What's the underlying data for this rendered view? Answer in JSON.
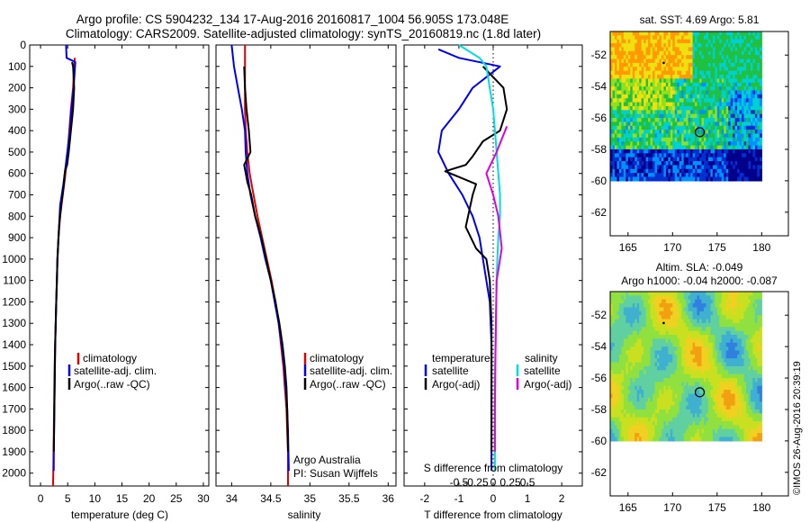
{
  "header": {
    "line1": "Argo profile: CS 5904232_134 17-Aug-2016 20160817_1004 56.905S 173.048E",
    "line2": "Climatology: CARS2009. Satellite-adjusted climatology: synTS_20160819.nc (1.8d later)"
  },
  "chart_data": [
    {
      "type": "line",
      "name": "temperature",
      "xlabel": "temperature (deg C)",
      "ylabel": "",
      "xlim": [
        -2,
        31
      ],
      "ylim": [
        2060,
        0
      ],
      "xticks": [
        0,
        5,
        10,
        15,
        20,
        25,
        30
      ],
      "yticks": [
        0,
        100,
        200,
        300,
        400,
        500,
        600,
        700,
        800,
        900,
        1000,
        1100,
        1200,
        1300,
        1400,
        1500,
        1600,
        1700,
        1800,
        1900,
        2000
      ],
      "series": [
        {
          "name": "climatology",
          "color": "#e00000",
          "x": [
            6.3,
            6.2,
            6.0,
            5.6,
            5.3,
            5.0,
            4.6,
            4.1,
            3.6,
            3.3,
            3.1,
            3.0,
            2.9,
            2.8,
            2.7,
            2.6,
            2.55,
            2.5,
            2.45,
            2.4,
            2.35,
            2.3
          ],
          "y": [
            60,
            100,
            200,
            300,
            400,
            500,
            600,
            700,
            800,
            900,
            1000,
            1100,
            1200,
            1300,
            1400,
            1500,
            1600,
            1700,
            1800,
            1900,
            2000,
            2060
          ]
        },
        {
          "name": "satellite-adj. clim.",
          "color": "#0000ee",
          "x": [
            4.7,
            4.8,
            6.4,
            6.1,
            5.7,
            5.4,
            4.7,
            4.2,
            3.6,
            3.3,
            3.1,
            3.0,
            2.9,
            2.8,
            2.7,
            2.65,
            2.6,
            2.55,
            2.5,
            2.45,
            2.42
          ],
          "y": [
            0,
            60,
            80,
            200,
            300,
            400,
            550,
            650,
            750,
            900,
            1000,
            1100,
            1200,
            1300,
            1400,
            1500,
            1600,
            1700,
            1800,
            1900,
            1990
          ]
        },
        {
          "name": "Argo(..raw -QC)",
          "color": "#000000",
          "x": [
            5.8,
            6.0,
            6.2,
            6.0,
            5.6,
            5.2,
            4.9,
            4.5,
            4.3,
            3.8,
            3.4,
            3.1,
            3.0,
            2.9,
            2.8,
            2.7,
            2.65,
            2.6,
            2.55,
            2.5,
            2.45
          ],
          "y": [
            80,
            100,
            200,
            300,
            400,
            500,
            560,
            590,
            650,
            750,
            850,
            1000,
            1100,
            1200,
            1300,
            1400,
            1500,
            1600,
            1700,
            1800,
            1900
          ]
        }
      ],
      "legend": {
        "position": "middle-right",
        "entries": [
          "climatology",
          "satellite-adj. clim.",
          "Argo(..raw -QC)"
        ]
      }
    },
    {
      "type": "line",
      "name": "salinity",
      "xlabel": "salinity",
      "xlim": [
        33.8,
        36.1
      ],
      "ylim": [
        2060,
        0
      ],
      "xticks": [
        34,
        34.5,
        35,
        35.5,
        36
      ],
      "xtick_labels": [
        "34",
        "34.5",
        "35",
        "35.5",
        "36"
      ],
      "series": [
        {
          "name": "climatology",
          "color": "#e00000",
          "x": [
            34.17,
            34.17,
            34.17,
            34.17,
            34.17,
            34.18,
            34.2,
            34.23,
            34.28,
            34.33,
            34.39,
            34.45,
            34.51,
            34.56,
            34.6,
            34.63,
            34.66,
            34.68,
            34.7,
            34.71,
            34.72,
            34.72
          ],
          "y": [
            0,
            60,
            100,
            200,
            300,
            400,
            500,
            600,
            700,
            800,
            900,
            1000,
            1100,
            1200,
            1300,
            1400,
            1500,
            1600,
            1700,
            1800,
            1900,
            2060
          ]
        },
        {
          "name": "satellite-adj. clim.",
          "color": "#0000ee",
          "x": [
            34.0,
            34.03,
            34.08,
            34.13,
            34.17,
            34.18,
            34.2,
            34.24,
            34.3,
            34.37,
            34.43,
            34.5,
            34.55,
            34.6,
            34.64,
            34.67,
            34.69,
            34.71,
            34.72,
            34.73
          ],
          "y": [
            0,
            100,
            200,
            300,
            400,
            500,
            600,
            700,
            800,
            900,
            1000,
            1100,
            1200,
            1300,
            1400,
            1500,
            1600,
            1700,
            1800,
            1990
          ]
        },
        {
          "name": "Argo(..raw -QC)",
          "color": "#000000",
          "x": [
            34.16,
            34.17,
            34.19,
            34.22,
            34.24,
            34.16,
            34.2,
            34.25,
            34.3,
            34.38,
            34.44,
            34.5,
            34.56,
            34.61,
            34.65,
            34.68,
            34.7,
            34.71,
            34.72
          ],
          "y": [
            100,
            200,
            300,
            400,
            500,
            560,
            640,
            700,
            800,
            900,
            1000,
            1100,
            1200,
            1300,
            1400,
            1500,
            1600,
            1700,
            1900
          ]
        }
      ],
      "legend": {
        "position": "middle-right",
        "entries": [
          "climatology",
          "satellite-adj. clim.",
          "Argo(..raw -QC)"
        ]
      },
      "annotations": [
        "Argo Australia",
        "PI: Susan Wijffels"
      ]
    },
    {
      "type": "line",
      "name": "differences",
      "xlabel": "T difference from climatology",
      "top_xlabel": "S difference from climatology",
      "xlim": [
        -2.6,
        2.6
      ],
      "ylim": [
        2060,
        0
      ],
      "xticks": [
        -2,
        -1,
        0,
        1,
        2
      ],
      "xtick_labels": [
        "-2",
        "-1",
        "0",
        "1",
        "2"
      ],
      "top_xticks": [
        -1,
        -0.5,
        0,
        0.5,
        1
      ],
      "top_xtick_labels": [
        "-0.5",
        "-0.25",
        "0",
        "0.25",
        "0.5"
      ],
      "series": [
        {
          "name": "temperature satellite",
          "color": "#0000ee",
          "x": [
            -1.6,
            -1.0,
            0.2,
            -0.6,
            -1.0,
            -1.5,
            -1.6,
            -1.3,
            -0.9,
            -0.6,
            -0.4,
            -0.3,
            -0.2,
            -0.1,
            -0.05,
            -0.05,
            -0.05,
            -0.05,
            -0.05
          ],
          "y": [
            20,
            60,
            100,
            200,
            300,
            400,
            500,
            600,
            700,
            800,
            900,
            1000,
            1100,
            1200,
            1400,
            1600,
            1800,
            1900,
            1990
          ]
        },
        {
          "name": "temperature Argo(-adj)",
          "color": "#000000",
          "x": [
            -0.3,
            0.3,
            0.4,
            0.2,
            -0.3,
            -0.6,
            -0.8,
            -1.4,
            -0.5,
            -0.6,
            -0.8,
            -0.5,
            -0.2,
            -0.1,
            -0.05,
            -0.05,
            -0.05,
            -0.05
          ],
          "y": [
            100,
            200,
            300,
            400,
            450,
            520,
            560,
            590,
            650,
            700,
            850,
            950,
            1000,
            1100,
            1300,
            1500,
            1700,
            1900
          ]
        },
        {
          "name": "salinity satellite",
          "color": "#00dddd",
          "x": [
            -1.0,
            -0.4,
            -0.2,
            -0.1,
            0.0,
            0.05,
            0.1,
            0.15,
            0.2,
            0.2,
            0.15,
            0.12,
            0.1,
            0.08,
            0.06,
            0.05,
            0.05
          ],
          "y": [
            0,
            60,
            100,
            200,
            300,
            400,
            500,
            600,
            700,
            800,
            900,
            1000,
            1100,
            1300,
            1500,
            1700,
            1990
          ]
        },
        {
          "name": "salinity Argo(-adj)",
          "color": "#dd00dd",
          "x": [
            0.4,
            0.3,
            0.1,
            -0.2,
            0.0,
            0.15,
            0.25,
            0.1,
            0.08,
            0.06,
            0.05,
            0.05,
            0.05
          ],
          "y": [
            380,
            420,
            500,
            600,
            700,
            800,
            950,
            1100,
            1300,
            1500,
            1700,
            1800,
            1900
          ]
        }
      ],
      "legend": {
        "position": "middle",
        "groups": {
          "temperature": [
            "satellite",
            "Argo(-adj)"
          ],
          "salinity": [
            "satellite",
            "Argo(-adj)"
          ]
        }
      }
    },
    {
      "type": "heatmap",
      "name": "sat. SST map",
      "title": "sat. SST: 4.69  Argo: 5.81",
      "xlim": [
        163,
        183
      ],
      "ylim": [
        -63.5,
        -50.5
      ],
      "xticks": [
        165,
        170,
        175,
        180
      ],
      "yticks": [
        -52,
        -54,
        -56,
        -58,
        -60,
        -62
      ],
      "data_extent": {
        "lon": [
          163,
          180
        ],
        "lat": [
          -60,
          -50.5
        ]
      },
      "marker": {
        "lon": 173.048,
        "lat": -56.905
      }
    },
    {
      "type": "heatmap",
      "name": "Altim. SLA map",
      "title": "Altim. SLA: -0.049",
      "subtitle": "Argo h1000: -0.04  h2000: -0.087",
      "xlim": [
        163,
        183
      ],
      "ylim": [
        -63.5,
        -50.5
      ],
      "xticks": [
        165,
        170,
        175,
        180
      ],
      "yticks": [
        -52,
        -54,
        -56,
        -58,
        -60,
        -62
      ],
      "data_extent": {
        "lon": [
          163,
          180
        ],
        "lat": [
          -60,
          -50.5
        ]
      },
      "marker": {
        "lon": 173.048,
        "lat": -56.905
      }
    }
  ],
  "credit": "©IMOS 26-Aug-2016 20:39:19"
}
